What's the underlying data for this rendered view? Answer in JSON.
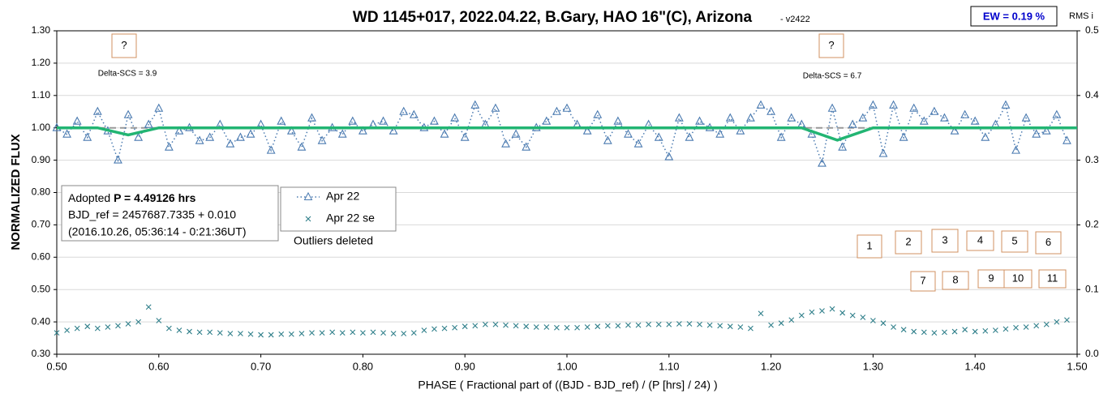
{
  "chart_data": {
    "type": "scatter",
    "title": "WD 1145+017, 2022.04.22, B.Gary, HAO 16\"(C), Arizona",
    "version": "- v2422",
    "x_label": "PHASE ( Fractional part of ((BJD - BJD_ref) / (P [hrs] / 24) )",
    "y_label": "NORMALIZED FLUX",
    "y2_label": "RMS i",
    "ew_label": "EW = 0.19 %",
    "info_box": [
      "Adopted",
      "P = 4.49126 hrs",
      "BJD_ref = 2457687.7335 + 0.010",
      "(2016.10.26, 05:36:14 - 0:21:36UT)"
    ],
    "note": "Outliers deleted",
    "annotations": [
      "?",
      "?",
      "Delta-SCS = 3.9",
      "Delta-SCS = 6.7",
      "1",
      "2",
      "3",
      "4",
      "5",
      "6",
      "7",
      "8",
      "9",
      "10",
      "11"
    ],
    "xlim": [
      0.5,
      1.5
    ],
    "xticks": [
      {
        "value": 0.5,
        "label": "0.50"
      },
      {
        "value": 0.6,
        "label": "0.60"
      },
      {
        "value": 0.7,
        "label": "0.70"
      },
      {
        "value": 0.8,
        "label": "0.80"
      },
      {
        "value": 0.9,
        "label": "0.90"
      },
      {
        "value": 1.0,
        "label": "1.00"
      },
      {
        "value": 1.1,
        "label": "1.10"
      },
      {
        "value": 1.2,
        "label": "1.20"
      },
      {
        "value": 1.3,
        "label": "1.30"
      },
      {
        "value": 1.4,
        "label": "1.40"
      },
      {
        "value": 1.5,
        "label": "1.50"
      }
    ],
    "ylim": [
      0.3,
      1.3
    ],
    "yticks": [
      {
        "value": 0.3,
        "label": "0.30"
      },
      {
        "value": 0.4,
        "label": "0.40"
      },
      {
        "value": 0.5,
        "label": "0.50"
      },
      {
        "value": 0.6,
        "label": "0.60"
      },
      {
        "value": 0.7,
        "label": "0.70"
      },
      {
        "value": 0.8,
        "label": "0.80"
      },
      {
        "value": 0.9,
        "label": "0.90"
      },
      {
        "value": 1.0,
        "label": "1.00"
      },
      {
        "value": 1.1,
        "label": "1.10"
      },
      {
        "value": 1.2,
        "label": "1.20"
      },
      {
        "value": 1.3,
        "label": "1.30"
      }
    ],
    "y2lim": [
      0,
      0.5
    ],
    "y2ticks": [
      {
        "value": 0,
        "label": "0.0"
      },
      0.1,
      0.2,
      0.3,
      0.4,
      0.5
    ],
    "grid": true,
    "x": [
      0.5,
      0.51,
      0.52,
      0.53,
      0.54,
      0.55,
      0.56,
      0.57,
      0.58,
      0.59,
      0.6,
      0.61,
      0.62,
      0.63,
      0.64,
      0.65,
      0.66,
      0.67,
      0.68,
      0.69,
      0.7,
      0.71,
      0.72,
      0.73,
      0.74,
      0.75,
      0.76,
      0.77,
      0.78,
      0.79,
      0.8,
      0.81,
      0.82,
      0.83,
      0.84,
      0.85,
      0.86,
      0.87,
      0.88,
      0.89,
      0.9,
      0.91,
      0.92,
      0.93,
      0.94,
      0.95,
      0.96,
      0.97,
      0.98,
      0.99,
      1.0,
      1.01,
      1.02,
      1.03,
      1.04,
      1.05,
      1.06,
      1.07,
      1.08,
      1.09,
      1.1,
      1.11,
      1.12,
      1.13,
      1.14,
      1.15,
      1.16,
      1.17,
      1.18,
      1.19,
      1.2,
      1.21,
      1.22,
      1.23,
      1.24,
      1.25,
      1.26,
      1.27,
      1.28,
      1.29,
      1.3,
      1.31,
      1.32,
      1.33,
      1.34,
      1.35,
      1.36,
      1.37,
      1.38,
      1.39,
      1.4,
      1.41,
      1.42,
      1.43,
      1.44,
      1.45,
      1.46,
      1.47,
      1.48,
      1.49
    ],
    "series": [
      {
        "name": "Apr 22",
        "color": "#4a7ab0",
        "marker": "triangle",
        "values": [
          1.0,
          0.98,
          1.02,
          0.97,
          1.05,
          0.99,
          0.9,
          1.04,
          0.97,
          1.01,
          1.06,
          0.94,
          0.99,
          1.0,
          0.96,
          0.97,
          1.01,
          0.95,
          0.97,
          0.98,
          1.01,
          0.93,
          1.02,
          0.99,
          0.94,
          1.03,
          0.96,
          1.0,
          0.98,
          1.02,
          0.99,
          1.01,
          1.02,
          0.99,
          1.05,
          1.04,
          1.0,
          1.02,
          0.98,
          1.03,
          0.97,
          1.07,
          1.01,
          1.06,
          0.95,
          0.98,
          0.94,
          1.0,
          1.02,
          1.05,
          1.06,
          1.01,
          0.99,
          1.04,
          0.96,
          1.02,
          0.98,
          0.95,
          1.01,
          0.97,
          0.91,
          1.03,
          0.97,
          1.02,
          1.0,
          0.98,
          1.03,
          0.99,
          1.03,
          1.07,
          1.05,
          0.97,
          1.03,
          1.01,
          0.98,
          0.89,
          1.06,
          0.94,
          1.01,
          1.03,
          1.07,
          0.92,
          1.07,
          0.97,
          1.06,
          1.02,
          1.05,
          1.03,
          0.99,
          1.04,
          1.02,
          0.97,
          1.01,
          1.07,
          0.93,
          1.03,
          0.98,
          0.99,
          1.04,
          0.96
        ]
      },
      {
        "name": "Apr 22 se",
        "color": "#2f7f8a",
        "marker": "x",
        "axis": "y2",
        "values": [
          0.033,
          0.037,
          0.04,
          0.043,
          0.04,
          0.042,
          0.044,
          0.047,
          0.05,
          0.073,
          0.052,
          0.04,
          0.037,
          0.035,
          0.034,
          0.034,
          0.033,
          0.032,
          0.032,
          0.031,
          0.03,
          0.03,
          0.031,
          0.031,
          0.032,
          0.033,
          0.033,
          0.034,
          0.033,
          0.034,
          0.033,
          0.034,
          0.033,
          0.032,
          0.032,
          0.033,
          0.037,
          0.039,
          0.04,
          0.041,
          0.043,
          0.044,
          0.046,
          0.046,
          0.045,
          0.044,
          0.043,
          0.042,
          0.042,
          0.041,
          0.041,
          0.041,
          0.042,
          0.043,
          0.044,
          0.044,
          0.045,
          0.045,
          0.046,
          0.046,
          0.046,
          0.047,
          0.047,
          0.046,
          0.045,
          0.044,
          0.043,
          0.042,
          0.04,
          0.063,
          0.045,
          0.048,
          0.053,
          0.06,
          0.065,
          0.067,
          0.07,
          0.064,
          0.06,
          0.057,
          0.052,
          0.048,
          0.042,
          0.038,
          0.035,
          0.034,
          0.033,
          0.034,
          0.035,
          0.038,
          0.035,
          0.036,
          0.037,
          0.039,
          0.041,
          0.042,
          0.044,
          0.046,
          0.05,
          0.053
        ]
      }
    ],
    "model": {
      "color": "#22b573",
      "x": [
        0.5,
        0.54,
        0.57,
        0.6,
        1.23,
        1.265,
        1.3,
        1.5
      ],
      "values": [
        1.0,
        1.0,
        0.978,
        1.0,
        1.0,
        0.962,
        1.0,
        1.0
      ]
    },
    "reference_line": {
      "value": 1.0,
      "color": "#999999"
    }
  }
}
